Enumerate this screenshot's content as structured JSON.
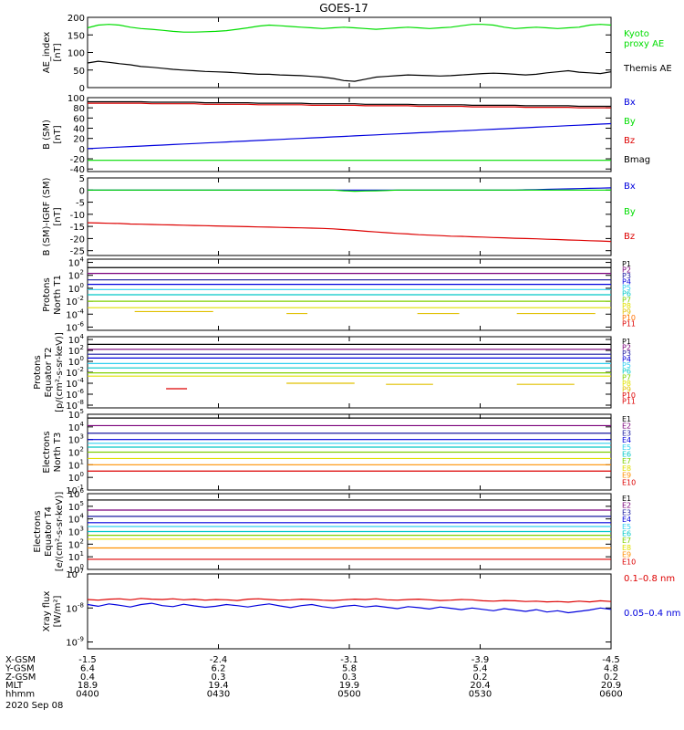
{
  "title": "GOES-17",
  "footer": {
    "row_labels": [
      "X-GSM",
      "Y-GSM",
      "Z-GSM",
      "MLT",
      "hhmm"
    ],
    "date": "2020 Sep 08",
    "columns": [
      {
        "values": [
          "-1.5",
          "6.4",
          "0.4",
          "18.9",
          "0400"
        ]
      },
      {
        "values": [
          "-2.4",
          "6.2",
          "0.3",
          "19.4",
          "0430"
        ]
      },
      {
        "values": [
          "-3.1",
          "5.8",
          "0.3",
          "19.9",
          "0500"
        ]
      },
      {
        "values": [
          "-3.9",
          "5.4",
          "0.2",
          "20.4",
          "0530"
        ]
      },
      {
        "values": [
          "-4.5",
          "4.8",
          "0.2",
          "20.9",
          "0600"
        ]
      }
    ]
  },
  "colors": {
    "black": "#000000",
    "red": "#dd0000",
    "green": "#00dd00",
    "blue": "#0000dd",
    "navy": "#1a1aa0",
    "purple": "#7a007a",
    "cyan": "#00c8c8",
    "ltcyan": "#30d0f0",
    "teal": "#00b090",
    "ygreen": "#80d000",
    "yellow": "#e0e000",
    "orange": "#ff9000",
    "dkred": "#b00000"
  },
  "chart_data": [
    {
      "type": "line",
      "ylabel": [
        "AE_index",
        "[nT]"
      ],
      "ylim": [
        0,
        200
      ],
      "yticks": [
        "0",
        "50",
        "100",
        "150",
        "200"
      ],
      "series": [
        {
          "name": "Kyoto proxy AE",
          "name_lines": [
            "Kyoto",
            "proxy AE"
          ],
          "color": "#00dd00",
          "values": [
            170,
            178,
            180,
            178,
            172,
            168,
            166,
            163,
            160,
            158,
            158,
            159,
            160,
            162,
            166,
            170,
            175,
            178,
            176,
            174,
            172,
            170,
            168,
            170,
            172,
            170,
            168,
            166,
            168,
            170,
            172,
            170,
            168,
            170,
            172,
            176,
            180,
            180,
            178,
            172,
            168,
            170,
            172,
            170,
            168,
            170,
            172,
            178,
            180,
            178
          ]
        },
        {
          "name": "Themis AE",
          "color": "#000000",
          "values": [
            70,
            75,
            72,
            68,
            65,
            60,
            58,
            55,
            52,
            50,
            48,
            46,
            45,
            44,
            42,
            40,
            38,
            38,
            36,
            35,
            34,
            32,
            30,
            26,
            20,
            18,
            24,
            30,
            32,
            34,
            36,
            35,
            34,
            33,
            34,
            36,
            38,
            40,
            41,
            40,
            38,
            36,
            38,
            42,
            45,
            48,
            44,
            42,
            40,
            45
          ]
        }
      ]
    },
    {
      "type": "line",
      "ylabel": [
        "B (SM)",
        "[nT]"
      ],
      "ylim": [
        -45,
        100
      ],
      "yticks": [
        "-40",
        "-20",
        "0",
        "20",
        "40",
        "60",
        "80",
        "100"
      ],
      "series": [
        {
          "name": "Bx",
          "color": "#0000dd",
          "values": [
            0,
            1,
            2,
            3,
            4,
            5,
            6,
            7,
            8,
            9,
            10,
            11,
            12,
            13,
            14,
            15,
            16,
            17,
            18,
            19,
            20,
            21,
            22,
            23,
            24,
            25,
            26,
            27,
            28,
            29,
            30,
            31,
            32,
            33,
            34,
            35,
            36,
            37,
            38,
            39,
            40,
            41,
            42,
            43,
            44,
            45,
            46,
            47,
            48,
            49
          ]
        },
        {
          "name": "By",
          "color": "#00dd00",
          "values": [
            -23,
            -23,
            -23,
            -23,
            -23,
            -23,
            -23,
            -23,
            -23,
            -23,
            -23,
            -23,
            -23,
            -23,
            -23,
            -23,
            -23,
            -23,
            -23,
            -23,
            -23,
            -23,
            -23,
            -23,
            -23,
            -23,
            -23,
            -23,
            -23,
            -23,
            -23,
            -23,
            -23,
            -23,
            -23,
            -23,
            -23,
            -23,
            -23,
            -23,
            -23,
            -23,
            -23,
            -23,
            -23,
            -23,
            -23,
            -23,
            -23,
            -23
          ]
        },
        {
          "name": "Bz",
          "color": "#dd0000",
          "values": [
            89,
            89,
            89,
            89,
            89,
            89,
            88,
            88,
            88,
            88,
            88,
            87,
            87,
            87,
            87,
            87,
            86,
            86,
            86,
            86,
            86,
            85,
            85,
            85,
            85,
            85,
            84,
            84,
            84,
            84,
            84,
            83,
            83,
            83,
            83,
            83,
            82,
            82,
            82,
            82,
            82,
            81,
            81,
            81,
            81,
            81,
            80,
            80,
            80,
            80
          ]
        },
        {
          "name": "Bmag",
          "color": "#000000",
          "values": [
            92,
            92,
            92,
            92,
            92,
            92,
            91,
            91,
            91,
            91,
            91,
            90,
            90,
            90,
            90,
            90,
            89,
            89,
            89,
            89,
            89,
            88,
            88,
            88,
            88,
            88,
            87,
            87,
            87,
            87,
            87,
            86,
            86,
            86,
            86,
            86,
            85,
            85,
            85,
            85,
            85,
            84,
            84,
            84,
            84,
            84,
            83,
            83,
            83,
            83
          ]
        }
      ]
    },
    {
      "type": "line",
      "ylabel": [
        "B (SM)-IGRF (SM)",
        "[nT]"
      ],
      "ylim": [
        -27,
        5
      ],
      "yticks": [
        "-25",
        "-20",
        "-15",
        "-10",
        "-5",
        "0",
        "5"
      ],
      "series": [
        {
          "name": "Bx",
          "color": "#0000dd",
          "values": [
            0,
            0,
            0,
            0,
            0,
            0,
            0,
            0,
            0,
            0,
            0,
            0,
            0,
            0,
            0,
            0,
            0,
            0,
            0,
            0,
            0,
            0,
            0,
            0,
            0,
            0,
            0,
            0,
            0,
            0,
            0,
            0,
            0,
            0,
            0,
            0,
            0,
            0,
            0,
            0,
            0,
            0.1,
            0.2,
            0.3,
            0.4,
            0.5,
            0.6,
            0.7,
            0.8,
            0.9
          ]
        },
        {
          "name": "By",
          "color": "#00dd00",
          "values": [
            0,
            0,
            0,
            0,
            0,
            0,
            0,
            0,
            0,
            0,
            0,
            0,
            0,
            0,
            0,
            0,
            0,
            0,
            0,
            0,
            0,
            0,
            0,
            0,
            -0.3,
            -0.5,
            -0.4,
            -0.3,
            -0.2,
            0,
            0,
            0,
            0,
            0,
            0,
            0,
            0,
            0,
            0,
            0,
            0,
            0,
            0,
            0,
            0,
            0,
            0,
            0,
            0,
            0
          ]
        },
        {
          "name": "Bz",
          "color": "#dd0000",
          "values": [
            -13.5,
            -13.6,
            -13.7,
            -13.8,
            -14,
            -14.1,
            -14.2,
            -14.3,
            -14.4,
            -14.5,
            -14.6,
            -14.7,
            -14.8,
            -14.9,
            -15,
            -15.1,
            -15.2,
            -15.3,
            -15.4,
            -15.5,
            -15.6,
            -15.7,
            -15.8,
            -16,
            -16.3,
            -16.6,
            -17,
            -17.3,
            -17.6,
            -17.9,
            -18.1,
            -18.4,
            -18.6,
            -18.8,
            -19,
            -19.1,
            -19.3,
            -19.4,
            -19.6,
            -19.7,
            -19.9,
            -20,
            -20.1,
            -20.3,
            -20.4,
            -20.6,
            -20.7,
            -20.9,
            -21,
            -21.2
          ]
        }
      ]
    },
    {
      "type": "line",
      "log": true,
      "ylabel": [
        "Protons",
        "North T1"
      ],
      "ylim": [
        -6.5,
        4.5
      ],
      "ytick_exps": [
        -6,
        -4,
        -2,
        0,
        2,
        4
      ],
      "series": [
        {
          "name": "P1",
          "color": "#000000",
          "level": 3.2
        },
        {
          "name": "P2",
          "color": "#7a007a",
          "level": 2.3
        },
        {
          "name": "P3",
          "color": "#1a1aa0",
          "level": 1.3
        },
        {
          "name": "P4",
          "color": "#0000dd",
          "level": 0.6
        },
        {
          "name": "P5",
          "color": "#30d0f0",
          "level": -0.2
        },
        {
          "name": "P6",
          "color": "#00c8c8",
          "level": -1.0
        },
        {
          "name": "P7",
          "color": "#80d000",
          "level": -2.0
        },
        {
          "name": "P8",
          "color": "#e0e000",
          "level": -3.0
        },
        {
          "name": "P9",
          "color": "#e0c000",
          "level": -3.8,
          "segments": [
            [
              0.09,
              0.24,
              -3.6
            ],
            [
              0.38,
              0.42,
              -3.9
            ],
            [
              0.63,
              0.71,
              -3.9
            ],
            [
              0.82,
              0.97,
              -3.9
            ]
          ]
        },
        {
          "name": "P10",
          "color": "#ff7000",
          "level": null
        },
        {
          "name": "P11",
          "color": "#dd0000",
          "level": null
        }
      ]
    },
    {
      "type": "line",
      "log": true,
      "ylabel": [
        "Protons",
        "Equator T2",
        "[p/(cm²-s-sr-keV)]"
      ],
      "ylim": [
        -8.5,
        4.5
      ],
      "ytick_exps": [
        -8,
        -6,
        -4,
        -2,
        0,
        2,
        4
      ],
      "series": [
        {
          "name": "P1",
          "color": "#000000",
          "level": 3.1
        },
        {
          "name": "P2",
          "color": "#7a007a",
          "level": 2.2
        },
        {
          "name": "P3",
          "color": "#1a1aa0",
          "level": 1.3
        },
        {
          "name": "P4",
          "color": "#0000dd",
          "level": 0.6
        },
        {
          "name": "P5",
          "color": "#30d0f0",
          "level": -0.4
        },
        {
          "name": "P6",
          "color": "#00c8c8",
          "level": -1.2
        },
        {
          "name": "P7",
          "color": "#80d000",
          "level": -2.1
        },
        {
          "name": "P8",
          "color": "#e0e000",
          "level": -2.7
        },
        {
          "name": "P9",
          "color": "#e0c000",
          "level": -4.0,
          "segments": [
            [
              0.38,
              0.51,
              -4.0
            ],
            [
              0.57,
              0.66,
              -4.2
            ],
            [
              0.82,
              0.93,
              -4.2
            ]
          ]
        },
        {
          "name": "P10",
          "color": "#dd0000",
          "level": -5.0,
          "segments": [
            [
              0.15,
              0.19,
              -5.0
            ]
          ]
        },
        {
          "name": "P11",
          "color": "#dd0000",
          "level": null
        }
      ]
    },
    {
      "type": "line",
      "log": true,
      "ylabel": [
        "Electrons",
        "North T3"
      ],
      "ylim": [
        -1,
        5
      ],
      "ytick_exps": [
        -1,
        0,
        1,
        2,
        3,
        4,
        5
      ],
      "series": [
        {
          "name": "E1",
          "color": "#000000",
          "level": 4.7
        },
        {
          "name": "E2",
          "color": "#7a007a",
          "level": 4.1
        },
        {
          "name": "E3",
          "color": "#1a1aa0",
          "level": 3.5
        },
        {
          "name": "E4",
          "color": "#0000dd",
          "level": 3.0
        },
        {
          "name": "E5",
          "color": "#30d0f0",
          "level": 2.7
        },
        {
          "name": "E6",
          "color": "#00c8c8",
          "level": 2.4
        },
        {
          "name": "E7",
          "color": "#80d000",
          "level": 2.0
        },
        {
          "name": "E8",
          "color": "#e0e000",
          "level": 1.5
        },
        {
          "name": "E9",
          "color": "#ff9000",
          "level": 1.0
        },
        {
          "name": "E10",
          "color": "#dd0000",
          "level": 0.5
        }
      ]
    },
    {
      "type": "line",
      "log": true,
      "ylabel": [
        "Electrons",
        "Equator T4",
        "[e/(cm²-s-sr-keV)]"
      ],
      "ylim": [
        0,
        6
      ],
      "ytick_exps": [
        0,
        1,
        2,
        3,
        4,
        5,
        6
      ],
      "series": [
        {
          "name": "E1",
          "color": "#000000",
          "level": 5.5
        },
        {
          "name": "E2",
          "color": "#7a007a",
          "level": 4.7
        },
        {
          "name": "E3",
          "color": "#1a1aa0",
          "level": 4.2
        },
        {
          "name": "E4",
          "color": "#0000dd",
          "level": 3.7
        },
        {
          "name": "E5",
          "color": "#30d0f0",
          "level": 3.4
        },
        {
          "name": "E6",
          "color": "#00c8c8",
          "level": 3.0
        },
        {
          "name": "E7",
          "color": "#80d000",
          "level": 2.7
        },
        {
          "name": "E8",
          "color": "#e0e000",
          "level": 2.4
        },
        {
          "name": "E9",
          "color": "#ff9000",
          "level": 1.7
        },
        {
          "name": "E10",
          "color": "#dd0000",
          "level": 0.8
        }
      ]
    },
    {
      "type": "line",
      "log": true,
      "ylabel": [
        "Xray flux",
        "[W/m²]"
      ],
      "ylim": [
        -9.2,
        -7
      ],
      "ytick_exps": [
        -9,
        -8,
        -7
      ],
      "series": [
        {
          "name": "0.1–0.8 nm",
          "color": "#dd0000",
          "values": [
            -7.75,
            -7.77,
            -7.74,
            -7.73,
            -7.76,
            -7.72,
            -7.74,
            -7.75,
            -7.73,
            -7.76,
            -7.74,
            -7.77,
            -7.75,
            -7.76,
            -7.78,
            -7.74,
            -7.73,
            -7.75,
            -7.77,
            -7.76,
            -7.74,
            -7.75,
            -7.77,
            -7.78,
            -7.76,
            -7.74,
            -7.75,
            -7.73,
            -7.76,
            -7.77,
            -7.75,
            -7.74,
            -7.76,
            -7.78,
            -7.77,
            -7.75,
            -7.76,
            -7.79,
            -7.8,
            -7.78,
            -7.79,
            -7.81,
            -7.8,
            -7.82,
            -7.81,
            -7.83,
            -7.8,
            -7.82,
            -7.79,
            -7.81
          ]
        },
        {
          "name": "0.05–0.4 nm",
          "color": "#0000dd",
          "values": [
            -7.9,
            -7.95,
            -7.88,
            -7.92,
            -7.97,
            -7.9,
            -7.86,
            -7.93,
            -7.96,
            -7.89,
            -7.94,
            -7.98,
            -7.95,
            -7.9,
            -7.93,
            -7.97,
            -7.92,
            -7.88,
            -7.94,
            -7.99,
            -7.93,
            -7.9,
            -7.96,
            -8.0,
            -7.95,
            -7.92,
            -7.97,
            -7.94,
            -7.98,
            -8.02,
            -7.96,
            -7.99,
            -8.03,
            -7.97,
            -8.01,
            -8.05,
            -8.0,
            -8.04,
            -8.08,
            -8.02,
            -8.06,
            -8.1,
            -8.05,
            -8.12,
            -8.08,
            -8.14,
            -8.1,
            -8.06,
            -8.0,
            -8.04
          ]
        }
      ]
    }
  ]
}
